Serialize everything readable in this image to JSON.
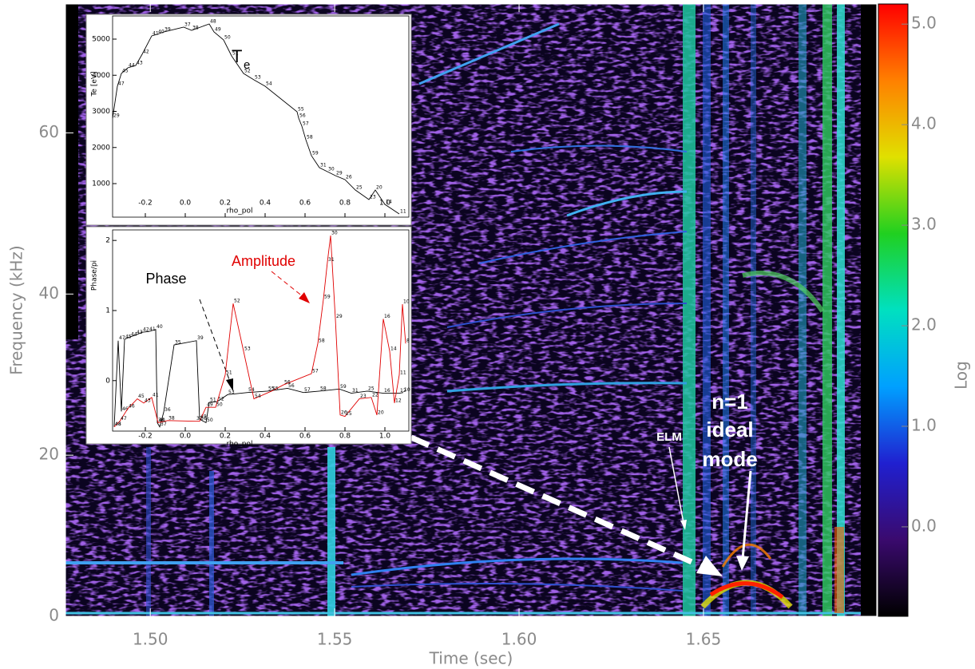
{
  "chart_data": [
    {
      "type": "heatmap",
      "xlabel": "Time (sec)",
      "ylabel": "Frequency (kHz)",
      "xlim": [
        1.477,
        1.697
      ],
      "xticks": [
        {
          "value": 1.5,
          "label": "1.50"
        },
        1.55,
        {
          "value": 1.6,
          "label": "1.60"
        },
        1.65
      ],
      "ylim": [
        0,
        76
      ],
      "yticks": [
        0,
        20,
        40,
        60
      ],
      "colorbar": {
        "label": "Log",
        "clim": [
          -0.89,
          5.2
        ],
        "cticks": [
          {
            "value": 0,
            "label": "0.0"
          },
          {
            "value": 1,
            "label": "1.0"
          },
          {
            "value": 2,
            "label": "2.0"
          },
          {
            "value": 3,
            "label": "3.0"
          },
          {
            "value": 4,
            "label": "4.0"
          },
          {
            "value": 5,
            "label": "5.0"
          }
        ],
        "colormap": [
          "#000000",
          "#3a0a6e",
          "#2020d0",
          "#00a0ff",
          "#00e0c0",
          "#20d020",
          "#e0e000",
          "#ff8000",
          "#ff0000"
        ]
      },
      "annotations": [
        "ELM",
        "n=1",
        "ideal",
        "mode"
      ]
    },
    {
      "type": "line",
      "label_main": "T",
      "label_sub": "e",
      "xlabel": "rho_pol",
      "ylabel": "Te [eV]",
      "xlim": [
        -0.364,
        1.12
      ],
      "xticks": [
        -0.2,
        {
          "value": 0,
          "label": "0.0"
        },
        0.2,
        0.4,
        0.6,
        0.8,
        {
          "value": 1,
          "label": "1.0"
        }
      ],
      "ylim": [
        72,
        5641
      ],
      "yticks": [
        1000,
        2000,
        3000,
        4000,
        5000
      ],
      "series": [
        {
          "color": "#000000",
          "x": [
            -0.364,
            -0.34,
            -0.32,
            -0.288,
            -0.248,
            -0.216,
            -0.168,
            -0.14,
            -0.108,
            -0.008,
            0.032,
            0.12,
            0.144,
            0.192,
            0.232,
            0.292,
            0.344,
            0.4,
            0.56,
            0.568,
            0.584,
            0.604,
            0.632,
            0.672,
            0.712,
            0.752,
            0.8,
            0.852,
            0.92,
            0.952,
            1.0,
            1.072
          ],
          "values": [
            2812,
            3696,
            4050,
            4205,
            4271,
            4580,
            5089,
            5133,
            5199,
            5332,
            5243,
            5420,
            5199,
            4978,
            4536,
            4050,
            3873,
            3696,
            2989,
            2812,
            2591,
            2216,
            1774,
            1442,
            1332,
            1221,
            1111,
            823,
            558,
            823,
            425,
            160
          ],
          "point_labels": [
            29,
            47,
            45,
            44,
            43,
            42,
            41,
            40,
            39,
            37,
            38,
            48,
            49,
            50,
            51,
            52,
            53,
            54,
            55,
            56,
            57,
            58,
            59,
            31,
            30,
            29,
            26,
            25,
            23,
            20,
            14,
            11
          ]
        }
      ]
    },
    {
      "type": "line",
      "xlabel": "rho_pol",
      "ylabel": "Phase/pi",
      "xlim": [
        -0.364,
        1.12
      ],
      "xticks": [
        -0.2,
        {
          "value": 0,
          "label": "0.0"
        },
        0.2,
        0.4,
        0.6,
        0.8,
        {
          "value": 1,
          "label": "1.0"
        }
      ],
      "ylim": [
        -0.72,
        2.15
      ],
      "yticks": [
        0,
        1,
        2
      ],
      "series": [
        {
          "name": "Phase",
          "color": "#000000",
          "x": [
            -0.356,
            -0.336,
            -0.32,
            -0.304,
            -0.276,
            -0.248,
            -0.216,
            -0.184,
            -0.148,
            -0.14,
            -0.128,
            -0.108,
            -0.056,
            0.056,
            0.072,
            0.104,
            0.12,
            0.16,
            0.212,
            0.312,
            0.412,
            0.512,
            0.592,
            0.672,
            0.772,
            0.832,
            0.912,
            0.992,
            1.072,
            1.092
          ],
          "values": [
            -0.66,
            0.57,
            -0.44,
            0.59,
            0.625,
            0.65,
            0.69,
            0.7,
            0.73,
            -0.6,
            -0.66,
            -0.45,
            0.51,
            0.57,
            -0.55,
            -0.6,
            -0.31,
            -0.3,
            -0.2,
            -0.17,
            -0.15,
            -0.11,
            -0.17,
            -0.15,
            -0.12,
            -0.18,
            -0.15,
            -0.18,
            -0.18,
            -0.17
          ],
          "point_labels": [
            48,
            47,
            46,
            45,
            44,
            43,
            42,
            41,
            40,
            38,
            37,
            36,
            35,
            39,
            49,
            50,
            51,
            52,
            53,
            54,
            55,
            56,
            57,
            58,
            59,
            31,
            25,
            16,
            12,
            10
          ]
        },
        {
          "name": "Amplitude",
          "color": "#e00000",
          "x": [
            -0.356,
            -0.328,
            -0.288,
            -0.24,
            -0.208,
            -0.168,
            -0.136,
            -0.088,
            0.052,
            0.072,
            0.104,
            0.152,
            0.2,
            0.24,
            0.292,
            0.344,
            0.432,
            0.492,
            0.632,
            0.664,
            0.692,
            0.712,
            0.728,
            0.752,
            0.776,
            0.8,
            0.872,
            0.932,
            0.96,
            0.992,
            1.024,
            1.048,
            1.072,
            1.088,
            1.104
          ],
          "values": [
            -0.66,
            -0.58,
            -0.4,
            -0.26,
            -0.32,
            -0.24,
            -0.6,
            -0.57,
            -0.58,
            -0.58,
            -0.38,
            -0.38,
            0.08,
            1.1,
            0.42,
            -0.26,
            -0.15,
            -0.06,
            0.1,
            0.53,
            1.16,
            1.69,
            2.07,
            0.88,
            -0.49,
            -0.51,
            -0.26,
            -0.24,
            -0.49,
            0.88,
            0.42,
            -0.32,
            0.08,
            1.09,
            0.53
          ],
          "point_labels": [
            48,
            47,
            46,
            45,
            43,
            41,
            40,
            38,
            37,
            36,
            49,
            50,
            51,
            52,
            53,
            54,
            55,
            56,
            57,
            58,
            59,
            31,
            30,
            29,
            26,
            25,
            23,
            22,
            20,
            16,
            14,
            12,
            11,
            10,
            8
          ]
        }
      ]
    }
  ]
}
